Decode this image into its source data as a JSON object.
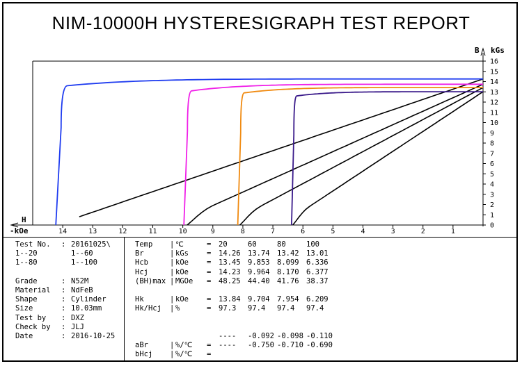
{
  "report_title": "NIM-10000H HYSTERESIGRAPH TEST REPORT",
  "chart_data": {
    "type": "line",
    "title": "NIM-10000H HYSTERESIGRAPH TEST REPORT",
    "x_axis": {
      "label_h": "H",
      "label_unit": "kOe",
      "range": [
        0,
        15
      ],
      "reversed": true,
      "ticks": [
        "14",
        "13",
        "12",
        "11",
        "10",
        "9",
        "8",
        "7",
        "6",
        "5",
        "4",
        "3",
        "2",
        "1"
      ]
    },
    "y_axis": {
      "label_b": "B",
      "label_unit": "kGs",
      "range": [
        0,
        16
      ],
      "position": "right",
      "ticks": [
        "0",
        "1",
        "2",
        "3",
        "4",
        "5",
        "6",
        "7",
        "8",
        "9",
        "10",
        "11",
        "12",
        "13",
        "14",
        "15",
        "16"
      ]
    },
    "colors": {
      "t20": "#1f3cf0",
      "t60": "#f020e8",
      "t80": "#f08a10",
      "t100": "#3a1a8a",
      "load": "#000000"
    },
    "demag_curves": [
      {
        "temp": "20",
        "color": "#1f3cf0",
        "br": 14.26,
        "hcj": 14.23,
        "hk": 13.84,
        "knee": 13.6
      },
      {
        "temp": "60",
        "color": "#f020e8",
        "br": 13.74,
        "hcj": 9.964,
        "hk": 9.704,
        "knee": 13.1
      },
      {
        "temp": "80",
        "color": "#f08a10",
        "br": 13.42,
        "hcj": 8.17,
        "hk": 7.954,
        "knee": 12.9
      },
      {
        "temp": "100",
        "color": "#3a1a8a",
        "br": 13.01,
        "hcj": 6.377,
        "hk": 6.209,
        "knee": 12.6
      }
    ],
    "normal_curves": [
      {
        "br": 14.26,
        "hcb": 13.45
      },
      {
        "br": 13.74,
        "hcb": 9.853
      },
      {
        "br": 13.42,
        "hcb": 8.099
      },
      {
        "br": 13.01,
        "hcb": 6.336
      }
    ]
  },
  "info_left": [
    {
      "label": "Test No.",
      "sep": ":",
      "value": "20161025\\"
    },
    {
      "label": "1--20",
      "sep": "",
      "value": "1--60"
    },
    {
      "label": "1--80",
      "sep": "",
      "value": "1--100"
    },
    {
      "label": "",
      "sep": "",
      "value": ""
    },
    {
      "label": "Grade",
      "sep": ":",
      "value": "N52M"
    },
    {
      "label": "Material",
      "sep": ":",
      "value": "NdFeB"
    },
    {
      "label": "Shape",
      "sep": ":",
      "value": "Cylinder"
    },
    {
      "label": "Size",
      "sep": ":",
      "value": "10.03mm"
    },
    {
      "label": "Test by",
      "sep": ":",
      "value": "DXZ"
    },
    {
      "label": "Check by",
      "sep": ":",
      "value": "JLJ"
    },
    {
      "label": "Date",
      "sep": ":",
      "value": "2016-10-25"
    }
  ],
  "info_right": [
    {
      "name": "Temp",
      "sep": "|",
      "unit": "℃",
      "eq": "=",
      "v": [
        "20",
        "60",
        "80",
        "100"
      ]
    },
    {
      "name": "Br",
      "sep": "|",
      "unit": "kGs",
      "eq": "=",
      "v": [
        "14.26",
        "13.74",
        "13.42",
        "13.01"
      ]
    },
    {
      "name": "Hcb",
      "sep": "|",
      "unit": "kOe",
      "eq": "=",
      "v": [
        "13.45",
        "9.853",
        "8.099",
        "6.336"
      ]
    },
    {
      "name": "Hcj",
      "sep": "|",
      "unit": "kOe",
      "eq": "=",
      "v": [
        "14.23",
        "9.964",
        "8.170",
        "6.377"
      ]
    },
    {
      "name": "(BH)max",
      "sep": "|",
      "unit": "MGOe",
      "eq": "=",
      "v": [
        "48.25",
        "44.40",
        "41.76",
        "38.37"
      ]
    },
    {
      "name": "",
      "sep": "",
      "unit": "",
      "eq": "",
      "v": [
        "",
        "",
        "",
        ""
      ]
    },
    {
      "name": "Hk",
      "sep": "|",
      "unit": "kOe",
      "eq": "=",
      "v": [
        "13.84",
        "9.704",
        "7.954",
        "6.209"
      ]
    },
    {
      "name": "Hk/Hcj",
      "sep": "|",
      "unit": "%",
      "eq": "=",
      "v": [
        "97.3",
        "97.4",
        "97.4",
        "97.4"
      ]
    },
    {
      "name": "",
      "sep": "",
      "unit": "",
      "eq": "",
      "v": [
        "",
        "",
        "",
        ""
      ]
    },
    {
      "name": "",
      "sep": "",
      "unit": "",
      "eq": "",
      "v": [
        "",
        "",
        "",
        ""
      ]
    },
    {
      "name": "",
      "sep": "",
      "unit": "",
      "eq": "",
      "v": [
        "----",
        "-0.092",
        "-0.098",
        "-0.110"
      ]
    },
    {
      "name": "aBr",
      "sep": "|",
      "unit": "%/℃",
      "eq": "=",
      "v": [
        "----",
        "-0.750",
        "-0.710",
        "-0.690"
      ]
    },
    {
      "name": "bHcj",
      "sep": "|",
      "unit": "%/℃",
      "eq": "=",
      "v": [
        "",
        "",
        "",
        ""
      ]
    }
  ]
}
